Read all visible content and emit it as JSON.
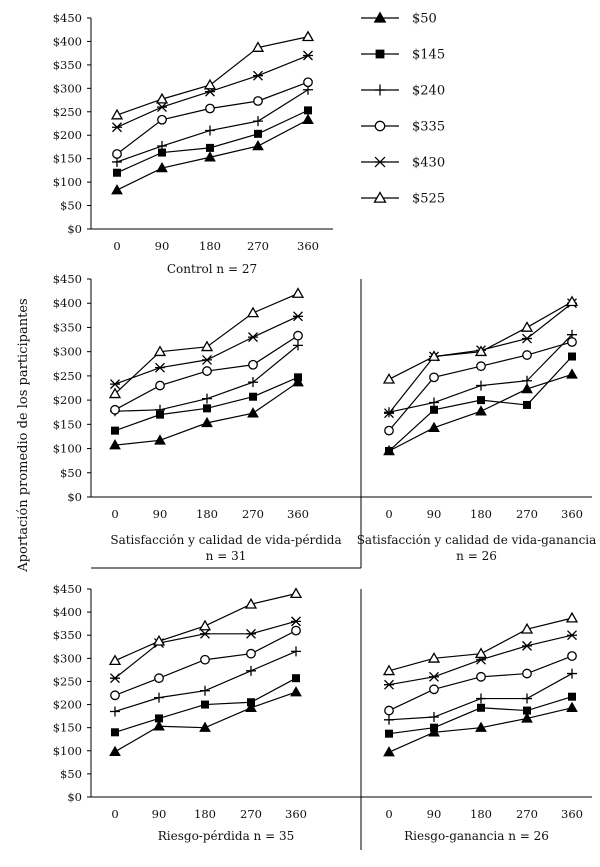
{
  "figure": {
    "y_axis_label": "Aportación promedio de los participantes",
    "x_tick_labels": [
      "0",
      "90",
      "180",
      "270",
      "360"
    ],
    "y_tick_labels": [
      "$0",
      "$50",
      "$100",
      "$150",
      "$200",
      "$250",
      "$300",
      "$350",
      "$400",
      "$450"
    ]
  },
  "legend": [
    {
      "label": "$50",
      "marker": "triangle-filled"
    },
    {
      "label": "$145",
      "marker": "square-filled"
    },
    {
      "label": "$240",
      "marker": "plus"
    },
    {
      "label": "$335",
      "marker": "circle-open"
    },
    {
      "label": "$430",
      "marker": "asterisk"
    },
    {
      "label": "$525",
      "marker": "triangle-open"
    }
  ],
  "chart_data": [
    {
      "type": "line",
      "panel": "control",
      "caption": "Control n = 27",
      "x": [
        0,
        90,
        180,
        270,
        360
      ],
      "ylim": [
        0,
        450
      ],
      "series": [
        {
          "name": "$50",
          "values": [
            83,
            130,
            153,
            177,
            233
          ]
        },
        {
          "name": "$145",
          "values": [
            120,
            163,
            173,
            203,
            253
          ]
        },
        {
          "name": "$240",
          "values": [
            143,
            177,
            210,
            230,
            297
          ]
        },
        {
          "name": "$335",
          "values": [
            160,
            233,
            257,
            273,
            313
          ]
        },
        {
          "name": "$430",
          "values": [
            217,
            260,
            293,
            327,
            370
          ]
        },
        {
          "name": "$525",
          "values": [
            243,
            277,
            307,
            387,
            410
          ]
        }
      ]
    },
    {
      "type": "line",
      "panel": "satisfaccion-perdida",
      "caption": "Satisfacción y calidad de vida-pérdida",
      "caption_n": "n = 31",
      "x": [
        0,
        90,
        180,
        270,
        360
      ],
      "ylim": [
        0,
        450
      ],
      "series": [
        {
          "name": "$50",
          "values": [
            107,
            117,
            153,
            173,
            237
          ]
        },
        {
          "name": "$145",
          "values": [
            137,
            170,
            183,
            207,
            247
          ]
        },
        {
          "name": "$240",
          "values": [
            177,
            180,
            203,
            237,
            313
          ]
        },
        {
          "name": "$335",
          "values": [
            180,
            230,
            260,
            273,
            333
          ]
        },
        {
          "name": "$430",
          "values": [
            233,
            267,
            283,
            330,
            373
          ]
        },
        {
          "name": "$525",
          "values": [
            213,
            300,
            310,
            380,
            420
          ]
        }
      ]
    },
    {
      "type": "line",
      "panel": "satisfaccion-ganancia",
      "caption": "Satisfacción y calidad de vida-ganancia",
      "caption_n": "n = 26",
      "x": [
        0,
        90,
        180,
        270,
        360
      ],
      "ylim": [
        0,
        450
      ],
      "series": [
        {
          "name": "$50",
          "values": [
            95,
            143,
            177,
            223,
            253
          ]
        },
        {
          "name": "$145",
          "values": [
            95,
            180,
            200,
            190,
            290
          ]
        },
        {
          "name": "$240",
          "values": [
            175,
            195,
            230,
            240,
            335
          ]
        },
        {
          "name": "$335",
          "values": [
            137,
            247,
            270,
            293,
            320
          ]
        },
        {
          "name": "$430",
          "values": [
            173,
            290,
            303,
            327,
            400
          ]
        },
        {
          "name": "$525",
          "values": [
            243,
            290,
            300,
            350,
            403
          ]
        }
      ]
    },
    {
      "type": "line",
      "panel": "riesgo-perdida",
      "caption": "Riesgo-pérdida n = 35",
      "x": [
        0,
        90,
        180,
        270,
        360
      ],
      "ylim": [
        0,
        450
      ],
      "series": [
        {
          "name": "$50",
          "values": [
            98,
            153,
            150,
            193,
            227
          ]
        },
        {
          "name": "$145",
          "values": [
            140,
            170,
            200,
            205,
            257
          ]
        },
        {
          "name": "$240",
          "values": [
            185,
            215,
            230,
            273,
            315
          ]
        },
        {
          "name": "$335",
          "values": [
            220,
            257,
            297,
            310,
            360
          ]
        },
        {
          "name": "$430",
          "values": [
            257,
            333,
            353,
            353,
            380
          ]
        },
        {
          "name": "$525",
          "values": [
            295,
            337,
            370,
            417,
            440
          ]
        }
      ]
    },
    {
      "type": "line",
      "panel": "riesgo-ganancia",
      "caption": "Riesgo-ganancia n = 26",
      "x": [
        0,
        90,
        180,
        270,
        360
      ],
      "ylim": [
        0,
        450
      ],
      "series": [
        {
          "name": "$50",
          "values": [
            97,
            140,
            150,
            170,
            193
          ]
        },
        {
          "name": "$145",
          "values": [
            137,
            150,
            193,
            187,
            217
          ]
        },
        {
          "name": "$240",
          "values": [
            167,
            173,
            213,
            213,
            267
          ]
        },
        {
          "name": "$335",
          "values": [
            187,
            233,
            260,
            267,
            305
          ]
        },
        {
          "name": "$430",
          "values": [
            243,
            260,
            297,
            327,
            350
          ]
        },
        {
          "name": "$525",
          "values": [
            273,
            300,
            310,
            363,
            387
          ]
        }
      ]
    }
  ]
}
